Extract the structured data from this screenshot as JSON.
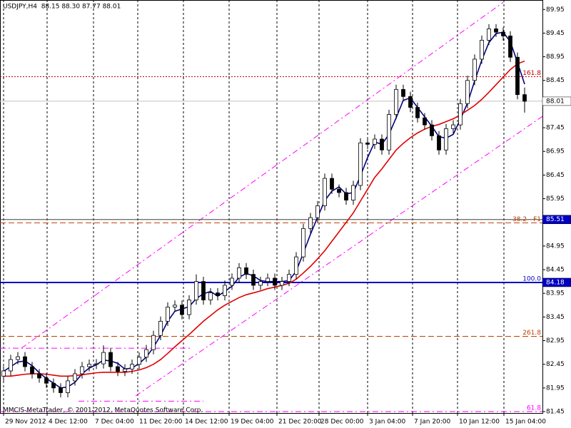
{
  "chart_data": {
    "type": "candlestick",
    "title": "USDJPY,H4  88.15 88.30 87.77 88.01",
    "watermark": "MMCIS-MetaTrader, © 2001-2012, MetaQuotes Software Corp.",
    "xlim": [
      0,
      76
    ],
    "ylim": [
      81.42,
      90.15
    ],
    "yticks": [
      89.95,
      89.45,
      88.95,
      88.45,
      87.45,
      86.95,
      86.45,
      85.95,
      84.95,
      84.45,
      83.95,
      83.45,
      82.95,
      82.45,
      81.95,
      81.45
    ],
    "xticks": [
      {
        "value": 0.5,
        "label": "29 Nov 2012"
      },
      {
        "value": 6.6,
        "label": "4 Dec 12:00"
      },
      {
        "value": 13.1,
        "label": "7 Dec 04:00"
      },
      {
        "value": 19.3,
        "label": "11 Dec 20:00"
      },
      {
        "value": 25.7,
        "label": "14 Dec 12:00"
      },
      {
        "value": 32.1,
        "label": "19 Dec 04:00"
      },
      {
        "value": 38.8,
        "label": "21 Dec 20:00"
      },
      {
        "value": 44.7,
        "label": "28 Dec 00:00"
      },
      {
        "value": 51.5,
        "label": "3 Jan 04:00"
      },
      {
        "value": 57.8,
        "label": "7 Jan 20:00"
      },
      {
        "value": 64.1,
        "label": "10 Jan 12:00"
      },
      {
        "value": 70.6,
        "label": "15 Jan 04:00"
      }
    ],
    "grid": true,
    "up_color": "#ffffff",
    "down_color": "#000000",
    "open": [
      82.2,
      82.31,
      82.55,
      82.61,
      82.4,
      82.25,
      82.16,
      82.05,
      81.95,
      81.85,
      82.1,
      82.25,
      82.4,
      82.45,
      82.46,
      82.7,
      82.4,
      82.3,
      82.35,
      82.45,
      82.6,
      82.76,
      83.06,
      83.36,
      83.66,
      83.7,
      83.5,
      83.81,
      84.2,
      83.81,
      83.96,
      83.9,
      84.12,
      84.27,
      84.49,
      84.35,
      84.12,
      84.2,
      84.27,
      84.12,
      84.2,
      84.35,
      84.72,
      85.32,
      85.55,
      85.8,
      86.38,
      86.15,
      86.08,
      85.92,
      86.23,
      87.13,
      87.1,
      87.21,
      86.98,
      87.73,
      88.26,
      88.11,
      87.88,
      87.66,
      87.51,
      87.28,
      86.98,
      87.43,
      87.51,
      87.96,
      88.45,
      88.9,
      89.3,
      89.54,
      89.47,
      89.39,
      88.94,
      88.15
    ],
    "high": [
      82.41,
      82.65,
      82.71,
      82.71,
      82.5,
      82.35,
      82.26,
      82.15,
      82.05,
      82.2,
      82.35,
      82.5,
      82.55,
      82.56,
      82.85,
      82.8,
      82.5,
      82.45,
      82.55,
      82.7,
      82.86,
      83.16,
      83.46,
      83.76,
      83.8,
      83.8,
      83.91,
      84.35,
      84.3,
      84.06,
      84.06,
      84.22,
      84.37,
      84.59,
      84.59,
      84.45,
      84.3,
      84.37,
      84.37,
      84.3,
      84.45,
      84.82,
      85.42,
      85.65,
      85.9,
      86.48,
      86.48,
      86.25,
      86.18,
      86.33,
      87.23,
      87.23,
      87.31,
      87.31,
      87.83,
      88.36,
      88.36,
      88.21,
      87.98,
      87.76,
      87.61,
      87.38,
      87.53,
      87.61,
      88.06,
      88.55,
      89.0,
      89.4,
      89.64,
      89.64,
      89.57,
      89.49,
      89.04,
      88.3
    ],
    "low": [
      82.1,
      82.21,
      82.45,
      82.3,
      82.15,
      82.06,
      81.95,
      81.85,
      81.75,
      81.75,
      82.0,
      82.15,
      82.3,
      82.35,
      82.36,
      82.3,
      82.2,
      82.2,
      82.25,
      82.35,
      82.5,
      82.66,
      82.96,
      83.26,
      83.56,
      83.4,
      83.4,
      83.71,
      83.71,
      83.71,
      83.8,
      83.8,
      84.02,
      84.17,
      84.25,
      84.02,
      84.02,
      84.1,
      84.02,
      84.02,
      84.1,
      84.25,
      84.62,
      85.22,
      85.45,
      85.7,
      86.05,
      85.98,
      85.82,
      85.82,
      86.13,
      87.0,
      87.0,
      86.88,
      86.88,
      87.63,
      88.01,
      87.78,
      87.56,
      87.41,
      87.18,
      86.88,
      86.88,
      87.33,
      87.41,
      87.86,
      88.35,
      88.8,
      89.2,
      89.37,
      89.29,
      88.84,
      88.05,
      87.77
    ],
    "close": [
      82.31,
      82.55,
      82.61,
      82.4,
      82.25,
      82.16,
      82.05,
      81.95,
      81.85,
      82.1,
      82.25,
      82.4,
      82.45,
      82.46,
      82.7,
      82.4,
      82.3,
      82.35,
      82.45,
      82.6,
      82.76,
      83.06,
      83.36,
      83.66,
      83.7,
      83.5,
      83.81,
      84.2,
      83.81,
      83.96,
      83.9,
      84.12,
      84.27,
      84.49,
      84.35,
      84.12,
      84.2,
      84.27,
      84.12,
      84.2,
      84.35,
      84.72,
      85.32,
      85.55,
      85.8,
      86.38,
      86.15,
      86.08,
      85.92,
      86.23,
      87.13,
      87.1,
      87.21,
      86.98,
      87.73,
      88.26,
      88.11,
      87.88,
      87.66,
      87.51,
      87.28,
      86.98,
      87.43,
      87.51,
      87.96,
      88.45,
      88.9,
      89.3,
      89.54,
      89.47,
      89.39,
      88.94,
      88.15,
      88.01
    ],
    "series": [
      {
        "color": "#000080",
        "values": [
          82.3,
          82.4,
          82.5,
          82.52,
          82.42,
          82.27,
          82.15,
          82.05,
          81.95,
          81.97,
          82.07,
          82.25,
          82.37,
          82.44,
          82.54,
          82.52,
          82.47,
          82.35,
          82.37,
          82.47,
          82.6,
          82.81,
          83.06,
          83.36,
          83.57,
          83.62,
          83.67,
          83.84,
          83.94,
          83.99,
          83.89,
          83.99,
          84.1,
          84.29,
          84.37,
          84.32,
          84.22,
          84.2,
          84.2,
          84.2,
          84.22,
          84.42,
          84.8,
          85.2,
          85.56,
          85.91,
          86.11,
          86.2,
          86.05,
          86.08,
          86.43,
          86.82,
          87.15,
          87.1,
          87.31,
          87.66,
          88.03,
          88.08,
          87.88,
          87.68,
          87.48,
          87.26,
          87.23,
          87.31,
          87.63,
          87.97,
          88.44,
          88.88,
          89.25,
          89.44,
          89.47,
          89.27,
          88.83,
          88.37
        ]
      },
      {
        "color": "#e00000",
        "values": [
          82.2,
          82.2,
          82.22,
          82.24,
          82.25,
          82.25,
          82.24,
          82.22,
          82.2,
          82.2,
          82.21,
          82.23,
          82.25,
          82.27,
          82.28,
          82.28,
          82.28,
          82.28,
          82.3,
          82.33,
          82.38,
          82.45,
          82.55,
          82.68,
          82.82,
          82.95,
          83.08,
          83.22,
          83.36,
          83.48,
          83.6,
          83.7,
          83.78,
          83.86,
          83.92,
          83.96,
          84.0,
          84.05,
          84.08,
          84.12,
          84.16,
          84.25,
          84.38,
          84.52,
          84.68,
          84.85,
          85.05,
          85.25,
          85.45,
          85.65,
          85.9,
          86.15,
          86.4,
          86.58,
          86.78,
          86.98,
          87.12,
          87.24,
          87.34,
          87.42,
          87.48,
          87.52,
          87.58,
          87.64,
          87.72,
          87.82,
          87.92,
          88.05,
          88.2,
          88.36,
          88.52,
          88.68,
          88.8,
          88.86
        ]
      }
    ],
    "levels": [
      {
        "value": 88.01,
        "color": "#c0c0c0",
        "box_color": "#ffffff",
        "box_text": "#000000"
      },
      {
        "value": 85.51,
        "color": "#404040",
        "box_color": "#0000c0",
        "box_text": "#ffffff"
      },
      {
        "value": 84.18,
        "color": "#0000c0",
        "width": 2,
        "box_color": "#0000c0",
        "box_text": "#ffffff",
        "label": "100.0"
      },
      {
        "value": 88.53,
        "color": "#c00000",
        "dash": "2 2",
        "label": "161.8"
      },
      {
        "value": 85.44,
        "color": "#c04000",
        "dash": "8 4",
        "label": "38.2 - F1"
      },
      {
        "value": 83.04,
        "color": "#c04000",
        "dash": "8 4",
        "label": "261.8"
      },
      {
        "value": 81.45,
        "color": "#ff00ff",
        "dash": "8 4 2 4",
        "label": "61.8"
      }
    ],
    "trendlines": [
      {
        "x": [
          3,
          70.5
        ],
        "y": [
          82.79,
          90.1
        ],
        "color": "#ff00ff"
      },
      {
        "x": [
          19,
          76
        ],
        "y": [
          81.78,
          87.69
        ],
        "color": "#ff00ff"
      },
      {
        "x": [
          0,
          27
        ],
        "y": [
          82.79,
          82.79
        ],
        "color": "#ff00ff"
      },
      {
        "x": [
          11,
          28.5
        ],
        "y": [
          81.67,
          81.67
        ],
        "color": "#ff00ff"
      }
    ]
  }
}
